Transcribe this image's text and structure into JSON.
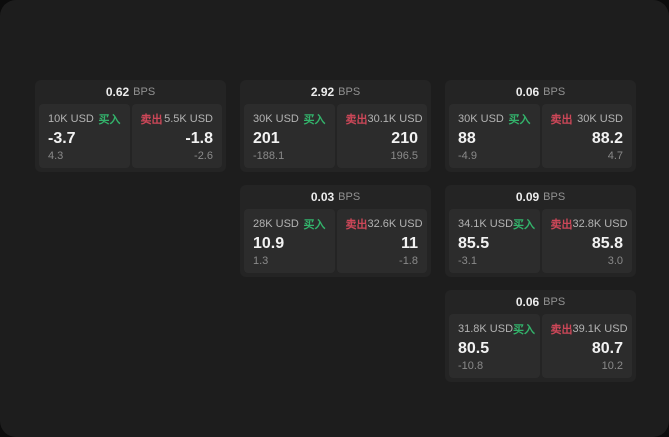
{
  "labels": {
    "buy": "买入",
    "sell": "卖出",
    "bps": "BPS"
  },
  "colors": {
    "buy": "#33b36b",
    "sell": "#cc4758",
    "page_bg": "#1d1d1d",
    "card_bg": "#242424",
    "subcard_bg": "#2c2c2c"
  },
  "cards": [
    {
      "row": 1,
      "col": 1,
      "bps": "0.62",
      "buy": {
        "amount": "10K USD",
        "value": "-3.7",
        "sub": "4.3"
      },
      "sell": {
        "amount": "5.5K USD",
        "value": "-1.8",
        "sub": "-2.6"
      }
    },
    {
      "row": 1,
      "col": 2,
      "bps": "2.92",
      "buy": {
        "amount": "30K USD",
        "value": "201",
        "sub": "-188.1"
      },
      "sell": {
        "amount": "30.1K USD",
        "value": "210",
        "sub": "196.5"
      }
    },
    {
      "row": 1,
      "col": 3,
      "bps": "0.06",
      "buy": {
        "amount": "30K USD",
        "value": "88",
        "sub": "-4.9"
      },
      "sell": {
        "amount": "30K USD",
        "value": "88.2",
        "sub": "4.7"
      }
    },
    {
      "row": 2,
      "col": 2,
      "bps": "0.03",
      "buy": {
        "amount": "28K USD",
        "value": "10.9",
        "sub": "1.3"
      },
      "sell": {
        "amount": "32.6K USD",
        "value": "11",
        "sub": "-1.8"
      }
    },
    {
      "row": 2,
      "col": 3,
      "bps": "0.09",
      "buy": {
        "amount": "34.1K USD",
        "value": "85.5",
        "sub": "-3.1"
      },
      "sell": {
        "amount": "32.8K USD",
        "value": "85.8",
        "sub": "3.0"
      }
    },
    {
      "row": 3,
      "col": 3,
      "bps": "0.06",
      "buy": {
        "amount": "31.8K USD",
        "value": "80.5",
        "sub": "-10.8"
      },
      "sell": {
        "amount": "39.1K USD",
        "value": "80.7",
        "sub": "10.2"
      }
    }
  ]
}
